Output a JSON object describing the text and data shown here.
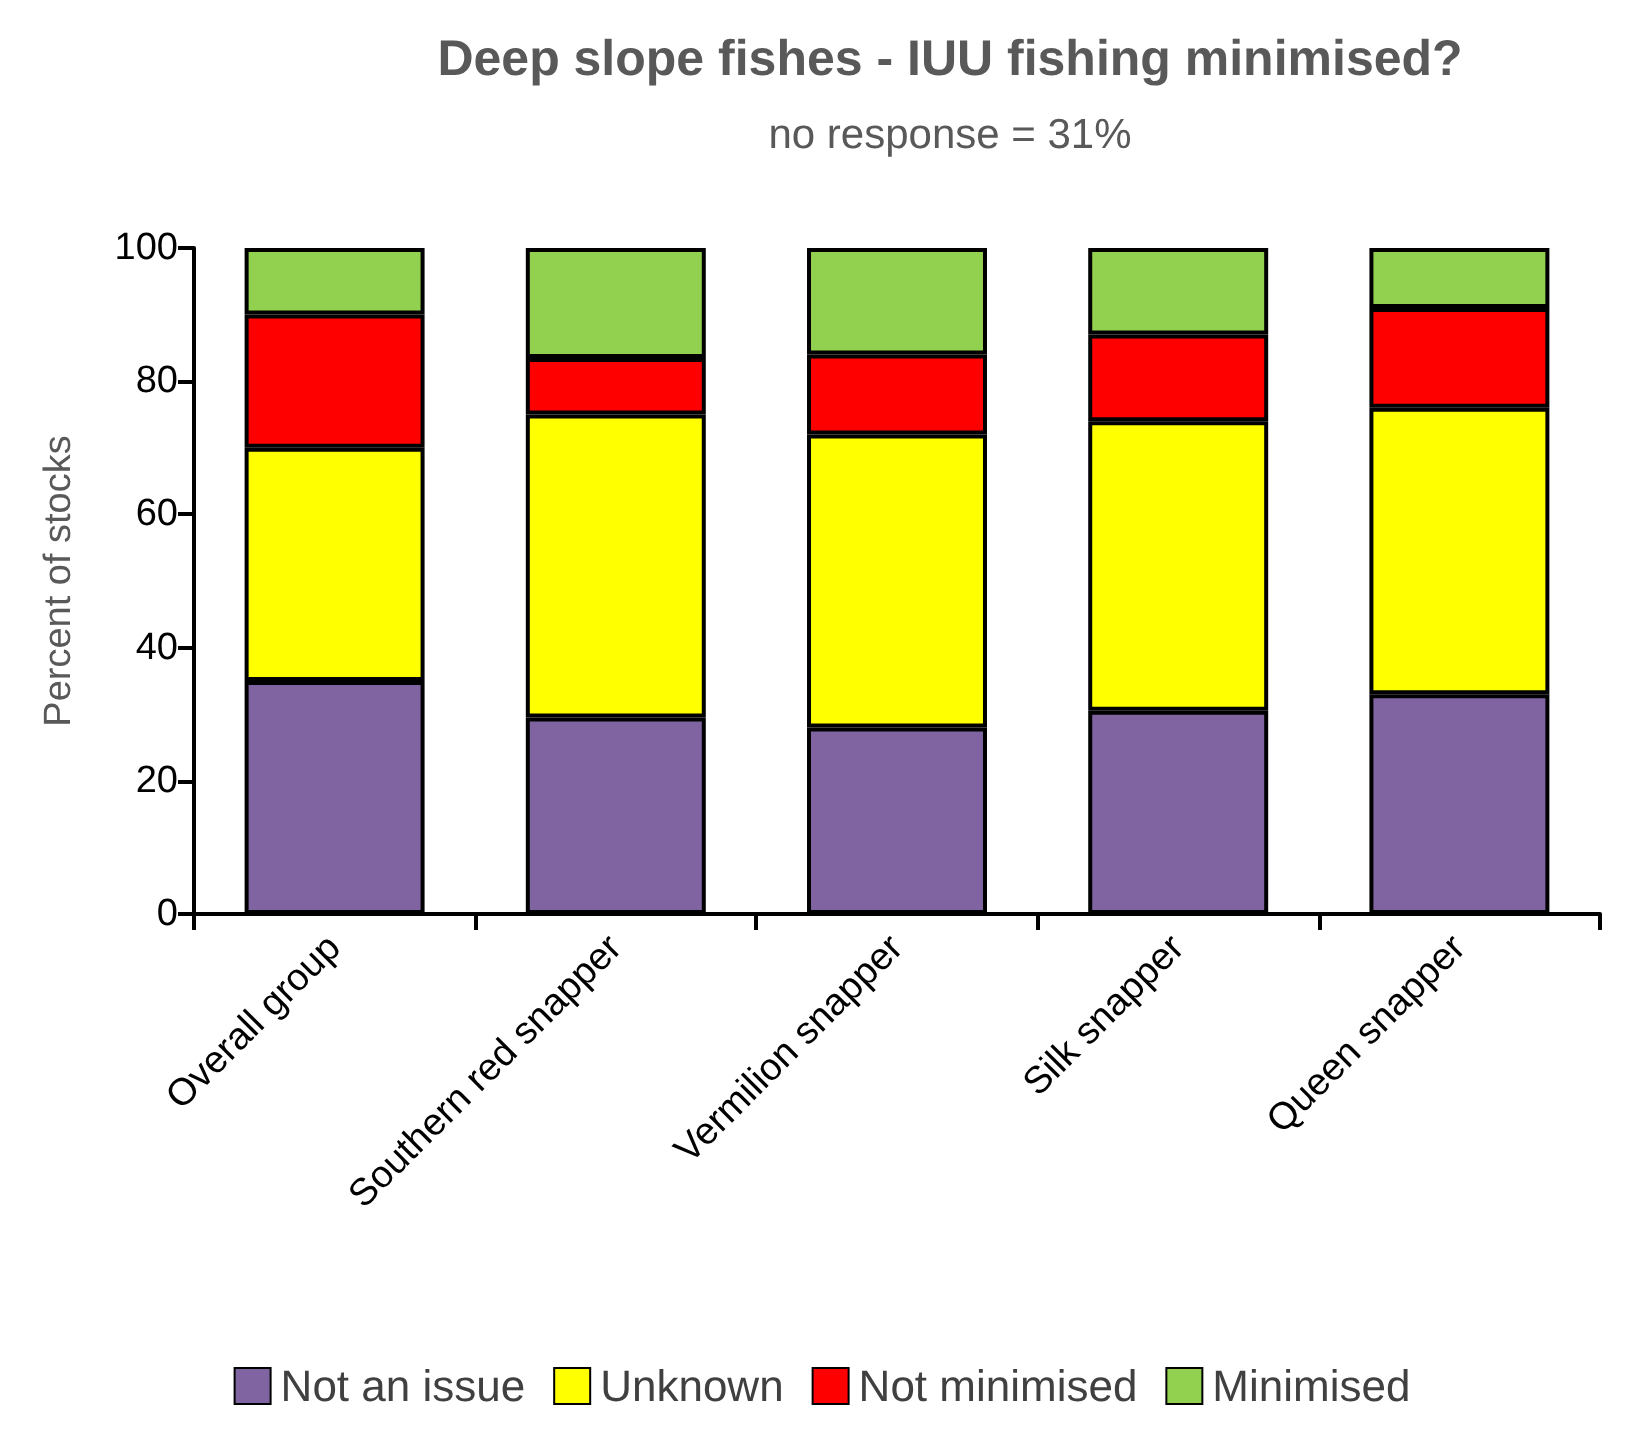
{
  "chart_data": {
    "type": "bar",
    "title": "Deep slope fishes - IUU fishing minimised?",
    "subtitle": "no response = 31%",
    "ylabel": "Percent of stocks",
    "categories": [
      "Overall group",
      "Southern red snapper",
      "Vermilion snapper",
      "Silk snapper",
      "Queen snapper"
    ],
    "stacked": true,
    "ylim": [
      0,
      100
    ],
    "yticks": [
      0,
      20,
      40,
      60,
      80,
      100
    ],
    "grid": false,
    "legend": "bottom",
    "series": [
      {
        "name": "Not an issue",
        "color": "#8064a2",
        "values": [
          35,
          29.5,
          28,
          30.5,
          33
        ]
      },
      {
        "name": "Unknown",
        "color": "#ffff00",
        "values": [
          35,
          45.5,
          44,
          43.5,
          43
        ]
      },
      {
        "name": "Not minimised",
        "color": "#ff0000",
        "values": [
          20,
          8.5,
          12,
          13,
          15
        ]
      },
      {
        "name": "Minimised",
        "color": "#92d050",
        "values": [
          10,
          16.5,
          16,
          13,
          9
        ]
      }
    ]
  }
}
